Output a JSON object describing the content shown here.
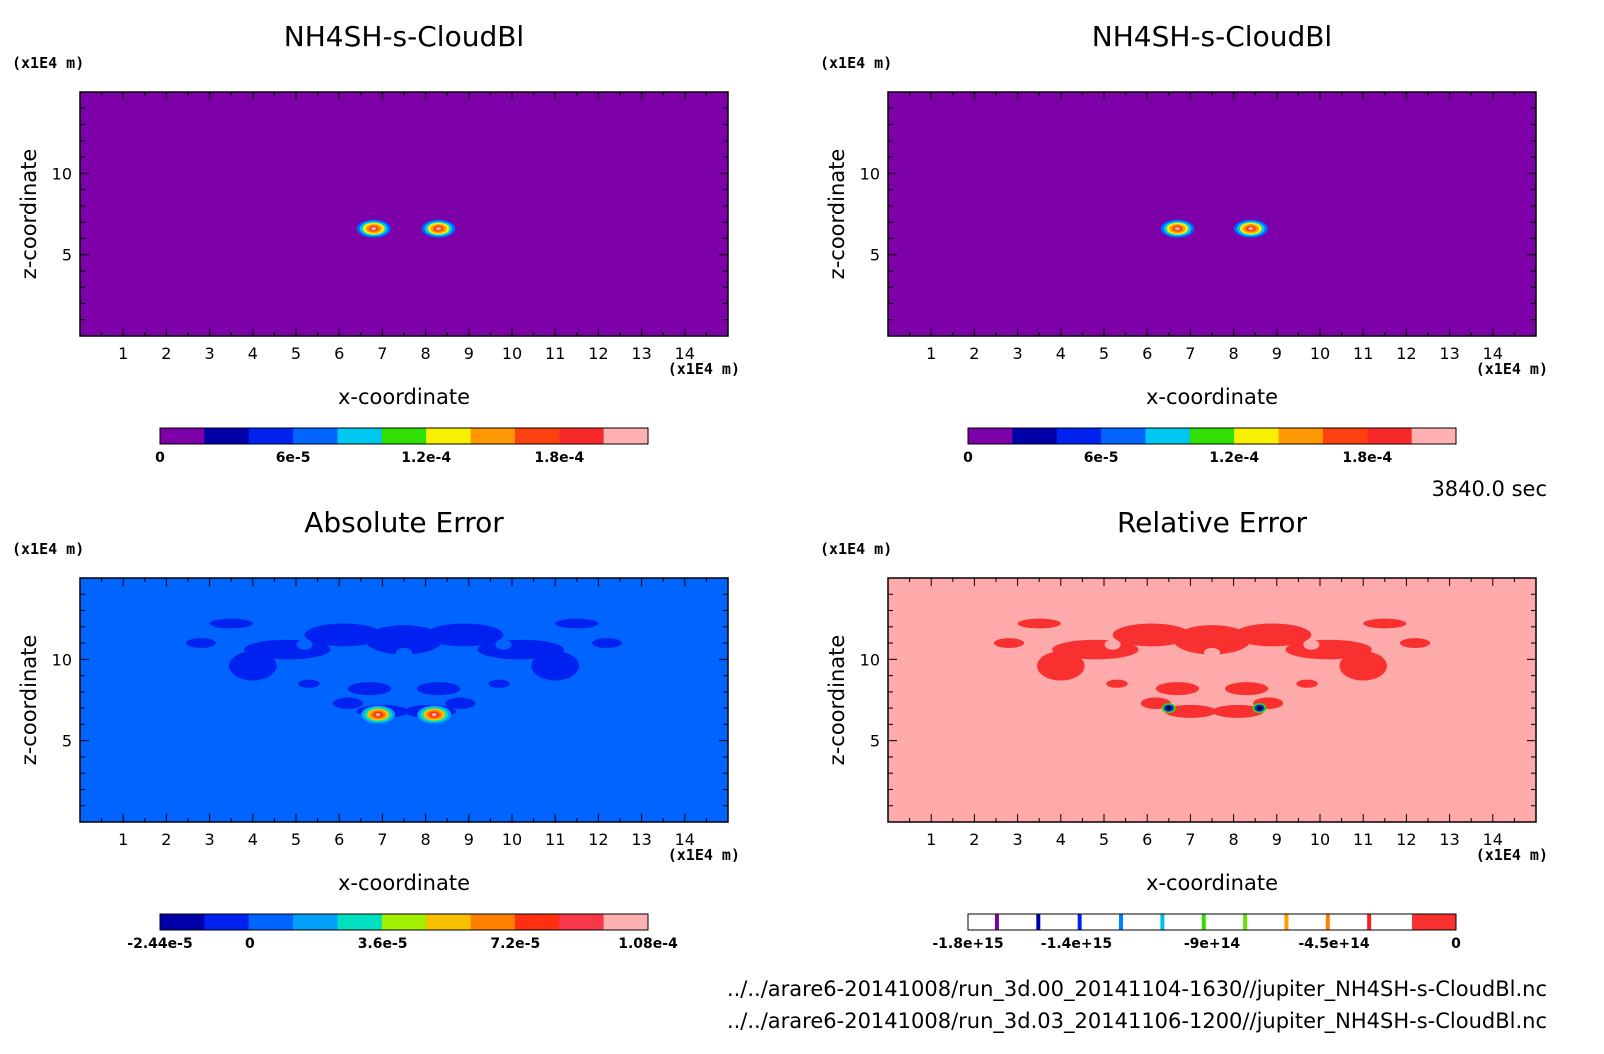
{
  "time_label": "3840.0 sec",
  "files": [
    "../../arare6-20141008/run_3d.00_20141104-1630//jupiter_NH4SH-s-CloudBl.nc",
    "../../arare6-20141008/run_3d.03_20141106-1200//jupiter_NH4SH-s-CloudBl.nc"
  ],
  "chart_data": [
    {
      "type": "heatmap",
      "title": "NH4SH-s-CloudBl",
      "xlabel": "x-coordinate",
      "ylabel": "z-coordinate",
      "x_unit": "(x1E4 m)",
      "y_unit": "(x1E4 m)",
      "xlim": [
        0,
        15
      ],
      "ylim": [
        0,
        15
      ],
      "x_ticks": [
        "1",
        "2",
        "3",
        "4",
        "5",
        "6",
        "7",
        "8",
        "9",
        "10",
        "11",
        "12",
        "13",
        "14"
      ],
      "y_ticks": [
        "5",
        "10"
      ],
      "background_color": "#7d00a8",
      "colorbar": {
        "colors": [
          "#7d00a8",
          "#0000a8",
          "#0022f0",
          "#0064ff",
          "#00c8f0",
          "#30e000",
          "#f8f000",
          "#ff9800",
          "#ff4010",
          "#f82828",
          "#ffb0b0"
        ],
        "tick_labels": [
          "0",
          "6e-5",
          "1.2e-4",
          "1.8e-4"
        ],
        "tick_values": [
          0,
          6e-05,
          0.00012,
          0.00018
        ],
        "range": [
          0,
          0.00022
        ]
      },
      "blobs": [
        {
          "x": 6.8,
          "z": 6.6,
          "peak": 0.0002
        },
        {
          "x": 8.3,
          "z": 6.6,
          "peak": 0.0002
        }
      ]
    },
    {
      "type": "heatmap",
      "title": "NH4SH-s-CloudBl",
      "xlabel": "x-coordinate",
      "ylabel": "z-coordinate",
      "x_unit": "(x1E4 m)",
      "y_unit": "(x1E4 m)",
      "xlim": [
        0,
        15
      ],
      "ylim": [
        0,
        15
      ],
      "x_ticks": [
        "1",
        "2",
        "3",
        "4",
        "5",
        "6",
        "7",
        "8",
        "9",
        "10",
        "11",
        "12",
        "13",
        "14"
      ],
      "y_ticks": [
        "5",
        "10"
      ],
      "background_color": "#7d00a8",
      "colorbar": {
        "colors": [
          "#7d00a8",
          "#0000a8",
          "#0022f0",
          "#0064ff",
          "#00c8f0",
          "#30e000",
          "#f8f000",
          "#ff9800",
          "#ff4010",
          "#f82828",
          "#ffb0b0"
        ],
        "tick_labels": [
          "0",
          "6e-5",
          "1.2e-4",
          "1.8e-4"
        ],
        "tick_values": [
          0,
          6e-05,
          0.00012,
          0.00018
        ],
        "range": [
          0,
          0.00022
        ]
      },
      "blobs": [
        {
          "x": 6.7,
          "z": 6.6,
          "peak": 0.00019
        },
        {
          "x": 8.4,
          "z": 6.6,
          "peak": 0.00019
        }
      ]
    },
    {
      "type": "heatmap",
      "title": "Absolute Error",
      "xlabel": "x-coordinate",
      "ylabel": "z-coordinate",
      "x_unit": "(x1E4 m)",
      "y_unit": "(x1E4 m)",
      "xlim": [
        0,
        15
      ],
      "ylim": [
        0,
        15
      ],
      "x_ticks": [
        "1",
        "2",
        "3",
        "4",
        "5",
        "6",
        "7",
        "8",
        "9",
        "10",
        "11",
        "12",
        "13",
        "14"
      ],
      "y_ticks": [
        "5",
        "10"
      ],
      "background_color": "#0064ff",
      "contour_color": "#0022f0",
      "colorbar": {
        "colors": [
          "#0000a8",
          "#0022f0",
          "#0064ff",
          "#00a0f8",
          "#00e0c0",
          "#a0f000",
          "#f8c000",
          "#ff8000",
          "#ff3010",
          "#f83848",
          "#ffb0b0"
        ],
        "tick_labels": [
          "-2.44e-5",
          "0",
          "3.6e-5",
          "7.2e-5",
          "1.08e-4"
        ],
        "tick_values": [
          -2.44e-05,
          0,
          3.6e-05,
          7.2e-05,
          0.000108
        ],
        "range": [
          -2.44e-05,
          0.000108
        ]
      },
      "blobs": [
        {
          "x": 6.9,
          "z": 6.6,
          "peak": 0.0001
        },
        {
          "x": 8.2,
          "z": 6.6,
          "peak": 0.0001
        }
      ]
    },
    {
      "type": "heatmap",
      "title": "Relative Error",
      "xlabel": "x-coordinate",
      "ylabel": "z-coordinate",
      "x_unit": "(x1E4 m)",
      "y_unit": "(x1E4 m)",
      "xlim": [
        0,
        15
      ],
      "ylim": [
        0,
        15
      ],
      "x_ticks": [
        "1",
        "2",
        "3",
        "4",
        "5",
        "6",
        "7",
        "8",
        "9",
        "10",
        "11",
        "12",
        "13",
        "14"
      ],
      "y_ticks": [
        "5",
        "10"
      ],
      "background_color": "#ffaaaa",
      "contour_color": "#f83030",
      "colorbar": {
        "style": "lines",
        "line_colors": [
          "#7d00a8",
          "#0000a8",
          "#0022f0",
          "#0080ff",
          "#00c0e8",
          "#30e000",
          "#60e800",
          "#ffa000",
          "#ff8000",
          "#f82020"
        ],
        "end_color": "#f83030",
        "tick_labels": [
          "-1.8e+15",
          "-1.4e+15",
          "-9e+14",
          "-4.5e+14",
          "0"
        ],
        "tick_values": [
          -1800000000000000.0,
          -1400000000000000.0,
          -900000000000000.0,
          -450000000000000.0,
          0
        ],
        "range": [
          -1800000000000000.0,
          0
        ]
      },
      "blobs": [
        {
          "x": 6.5,
          "z": 7.0,
          "peak": -1800000000000000.0
        },
        {
          "x": 8.6,
          "z": 7.0,
          "peak": -1800000000000000.0
        }
      ]
    }
  ]
}
